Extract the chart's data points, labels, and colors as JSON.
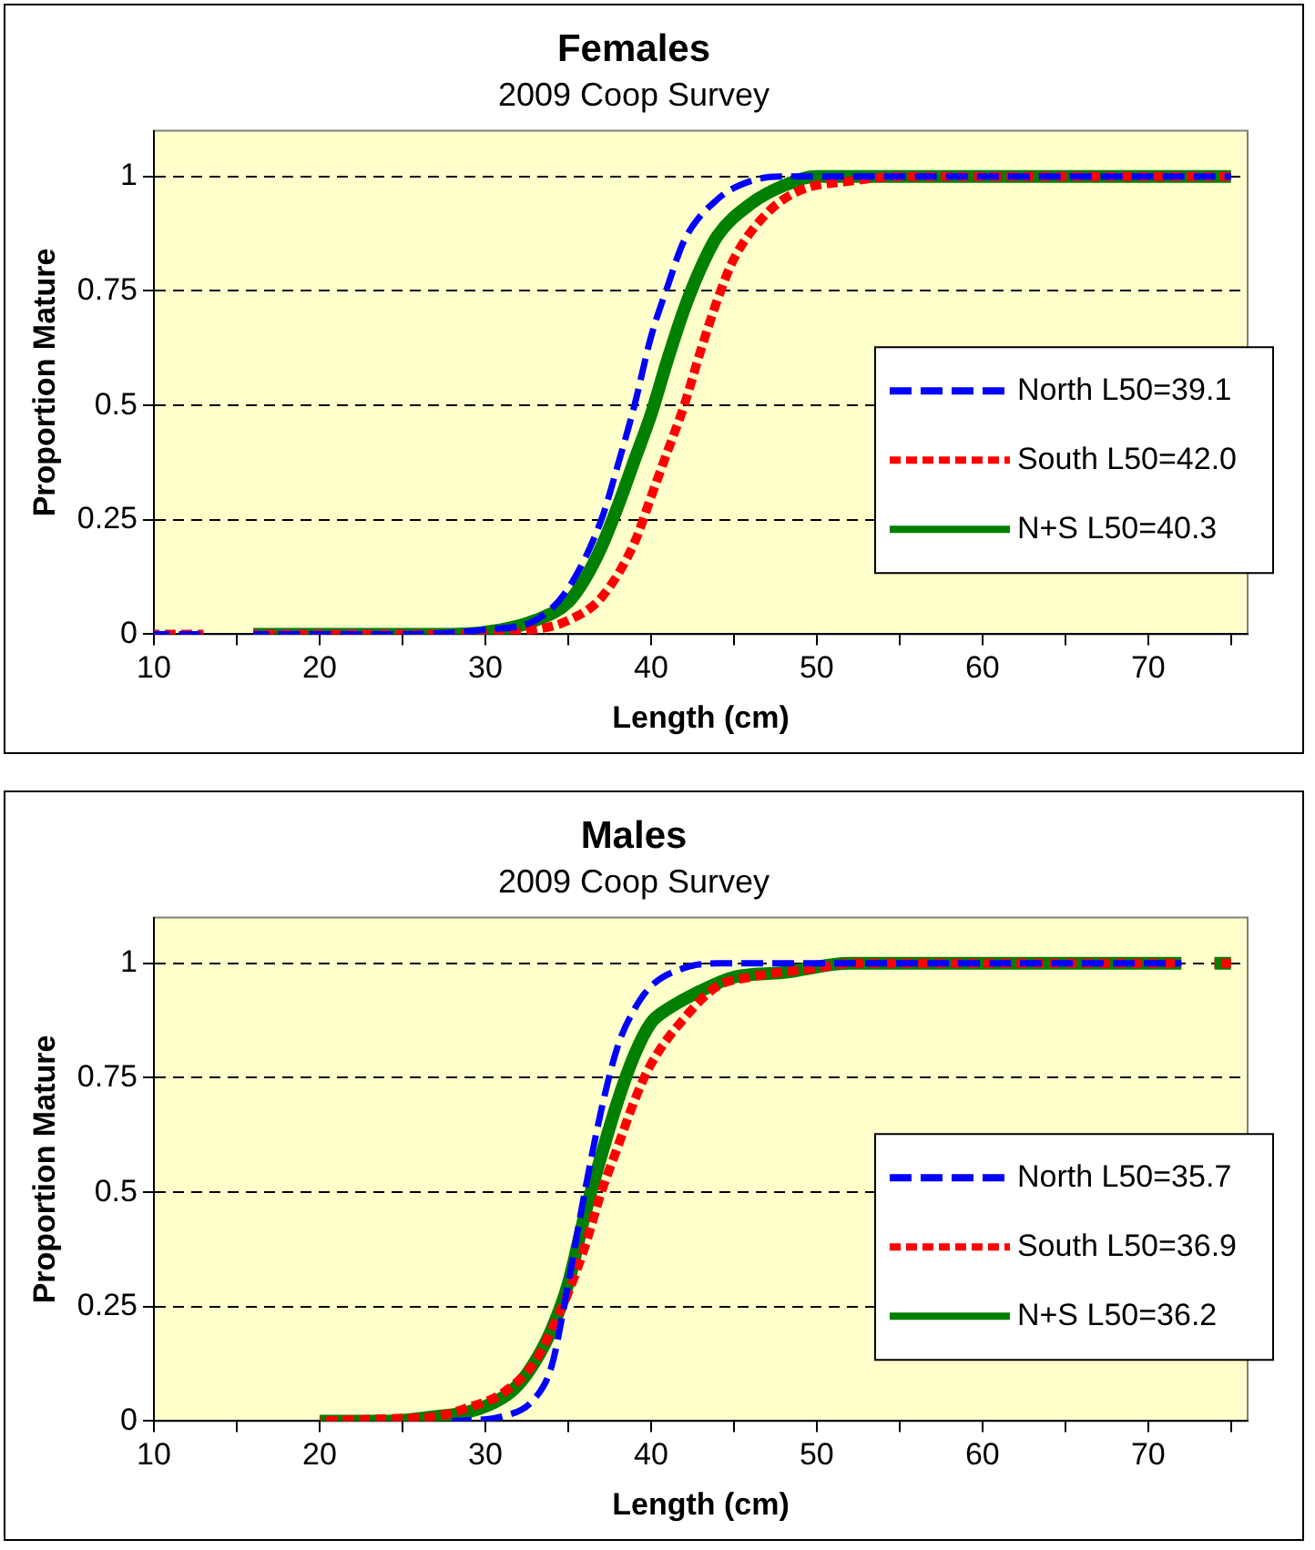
{
  "chart_data": [
    {
      "type": "line",
      "title": "Females",
      "subtitle": "2009 Coop Survey",
      "xlabel": "Length (cm)",
      "ylabel": "Proportion Mature",
      "xlim": [
        10,
        76
      ],
      "xticks": [
        10,
        {
          "value": 15,
          "label": null
        },
        20,
        {
          "value": 25,
          "label": null
        },
        30,
        {
          "value": 35,
          "label": null
        },
        40,
        {
          "value": 45,
          "label": null
        },
        50,
        {
          "value": 55,
          "label": null
        },
        60,
        {
          "value": 65,
          "label": null
        },
        70,
        {
          "value": 75,
          "label": null
        }
      ],
      "ylim": [
        0,
        1.1
      ],
      "yticks": [
        0,
        0.25,
        0.5,
        0.75,
        1
      ],
      "grid": "y",
      "legend": "right",
      "marker": "none",
      "series": [
        {
          "name": "North L50=39.1",
          "color": "#0000ff",
          "line_style": "dashed",
          "x": [
            10,
            13,
            14,
            16,
            25,
            30,
            33,
            35,
            37,
            38,
            39,
            40,
            41,
            42,
            44,
            46,
            48,
            50,
            75
          ],
          "values": [
            0,
            0,
            null,
            0,
            0,
            0.01,
            0.03,
            0.1,
            0.25,
            0.37,
            0.5,
            0.65,
            0.76,
            0.86,
            0.95,
            0.99,
            1,
            1,
            1
          ]
        },
        {
          "name": "South L50=42.0",
          "color": "#ff0000",
          "line_style": "dotted",
          "x": [
            10,
            13,
            14,
            16,
            30,
            33,
            35,
            37,
            39,
            40,
            41,
            42,
            43,
            44,
            45,
            47,
            49,
            52,
            55,
            75
          ],
          "values": [
            0,
            0,
            null,
            0,
            0,
            0.01,
            0.03,
            0.08,
            0.2,
            0.3,
            0.4,
            0.5,
            0.62,
            0.73,
            0.82,
            0.92,
            0.97,
            0.99,
            1,
            1
          ]
        },
        {
          "name": "N+S L50=40.3",
          "color": "#008000",
          "line_style": "solid",
          "x": [
            16,
            28,
            31,
            33,
            35,
            36,
            37,
            38,
            39,
            40,
            41,
            42,
            43,
            44,
            46,
            48,
            50,
            52,
            75
          ],
          "values": [
            0,
            0,
            0.01,
            0.03,
            0.07,
            0.12,
            0.19,
            0.28,
            0.38,
            0.48,
            0.6,
            0.71,
            0.8,
            0.87,
            0.94,
            0.98,
            1,
            1,
            1
          ]
        }
      ]
    },
    {
      "type": "line",
      "title": "Males",
      "subtitle": "2009 Coop Survey",
      "xlabel": "Length (cm)",
      "ylabel": "Proportion Mature",
      "xlim": [
        10,
        76
      ],
      "xticks": [
        10,
        {
          "value": 15,
          "label": null
        },
        20,
        {
          "value": 25,
          "label": null
        },
        30,
        {
          "value": 35,
          "label": null
        },
        40,
        {
          "value": 45,
          "label": null
        },
        50,
        {
          "value": 55,
          "label": null
        },
        60,
        {
          "value": 65,
          "label": null
        },
        70,
        {
          "value": 75,
          "label": null
        }
      ],
      "ylim": [
        0,
        1.1
      ],
      "yticks": [
        0,
        0.25,
        0.5,
        0.75,
        1
      ],
      "grid": "y",
      "legend": "right",
      "marker": "none",
      "series": [
        {
          "name": "North L50=35.7",
          "color": "#0000ff",
          "line_style": "dashed",
          "x": [
            28,
            31,
            33,
            34,
            35,
            36,
            37,
            38,
            39,
            40,
            42,
            44,
            50,
            72
          ],
          "values": [
            0,
            0.01,
            0.05,
            0.12,
            0.3,
            0.5,
            0.68,
            0.82,
            0.9,
            0.95,
            0.99,
            1,
            1,
            1
          ]
        },
        {
          "name": "South L50=36.9",
          "color": "#ff0000",
          "line_style": "dotted",
          "x": [
            20,
            24,
            27,
            29,
            31,
            33,
            34,
            35,
            36,
            37,
            38,
            39,
            40,
            42,
            44,
            46,
            50,
            52,
            72,
            73,
            74,
            75
          ],
          "values": [
            0,
            0.005,
            0.01,
            0.03,
            0.06,
            0.13,
            0.2,
            0.28,
            0.38,
            0.5,
            0.6,
            0.7,
            0.78,
            0.88,
            0.95,
            0.97,
            0.99,
            1,
            1,
            null,
            1,
            1
          ]
        },
        {
          "name": "N+S L50=36.2",
          "color": "#008000",
          "line_style": "solid",
          "x": [
            20,
            24,
            27,
            29,
            31,
            32,
            33,
            34,
            35,
            36,
            37,
            38,
            39,
            40,
            41,
            43,
            45,
            48,
            52,
            72,
            73,
            74,
            75
          ],
          "values": [
            0,
            0,
            0.01,
            0.02,
            0.05,
            0.08,
            0.13,
            0.2,
            0.3,
            0.45,
            0.58,
            0.7,
            0.8,
            0.87,
            0.9,
            0.94,
            0.97,
            0.98,
            1,
            1,
            null,
            1,
            1
          ]
        }
      ]
    }
  ]
}
